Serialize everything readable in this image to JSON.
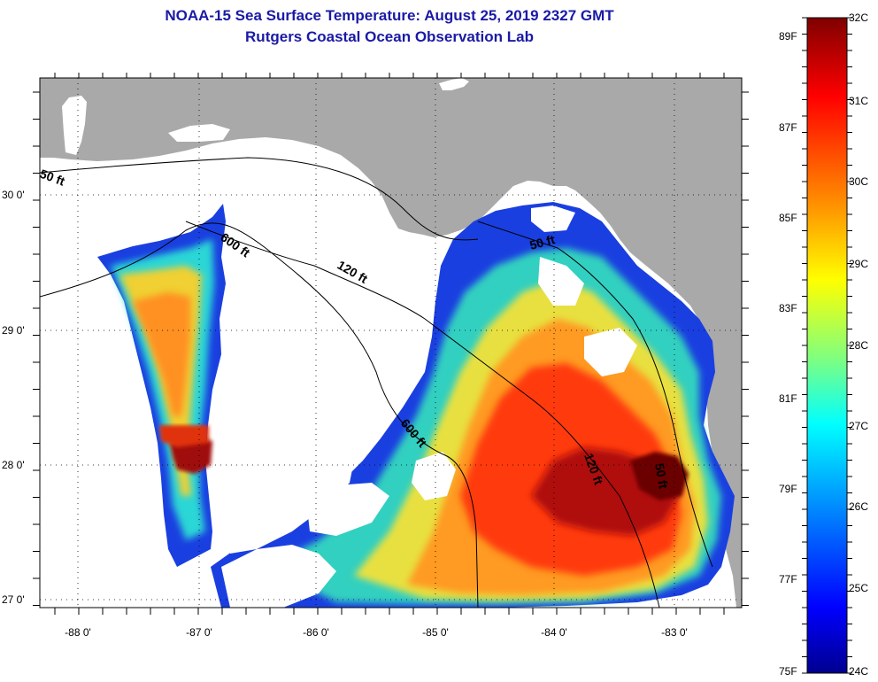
{
  "title": {
    "line1": "NOAA-15 Sea Surface Temperature:  August 25, 2019 2327 GMT",
    "line2": "Rutgers Coastal Ocean Observation Lab"
  },
  "map": {
    "lat_labels": [
      "30 0'",
      "29 0'",
      "28 0'",
      "27 0'"
    ],
    "lon_labels": [
      "-88 0'",
      "-87 0'",
      "-86 0'",
      "-85 0'",
      "-84 0'",
      "-83 0'"
    ],
    "contour_labels": [
      "50 ft",
      "600 ft",
      "120 ft",
      "50 ft",
      "600 ft",
      "120 ft",
      "50 ft"
    ],
    "colors": {
      "land": "#a9a9a9",
      "no_data": "#ffffff",
      "frame": "#000000"
    }
  },
  "colorbar": {
    "celsius_labels": [
      "32C",
      "31C",
      "30C",
      "29C",
      "28C",
      "27C",
      "26C",
      "25C",
      "24C"
    ],
    "fahrenheit_labels": [
      "89F",
      "87F",
      "85F",
      "83F",
      "81F",
      "79F",
      "77F",
      "75F"
    ],
    "gradient": [
      "#7f0000",
      "#ff0000",
      "#ff8c00",
      "#ffff00",
      "#7fff7f",
      "#00ffff",
      "#007fff",
      "#0000ff",
      "#00008f"
    ]
  }
}
